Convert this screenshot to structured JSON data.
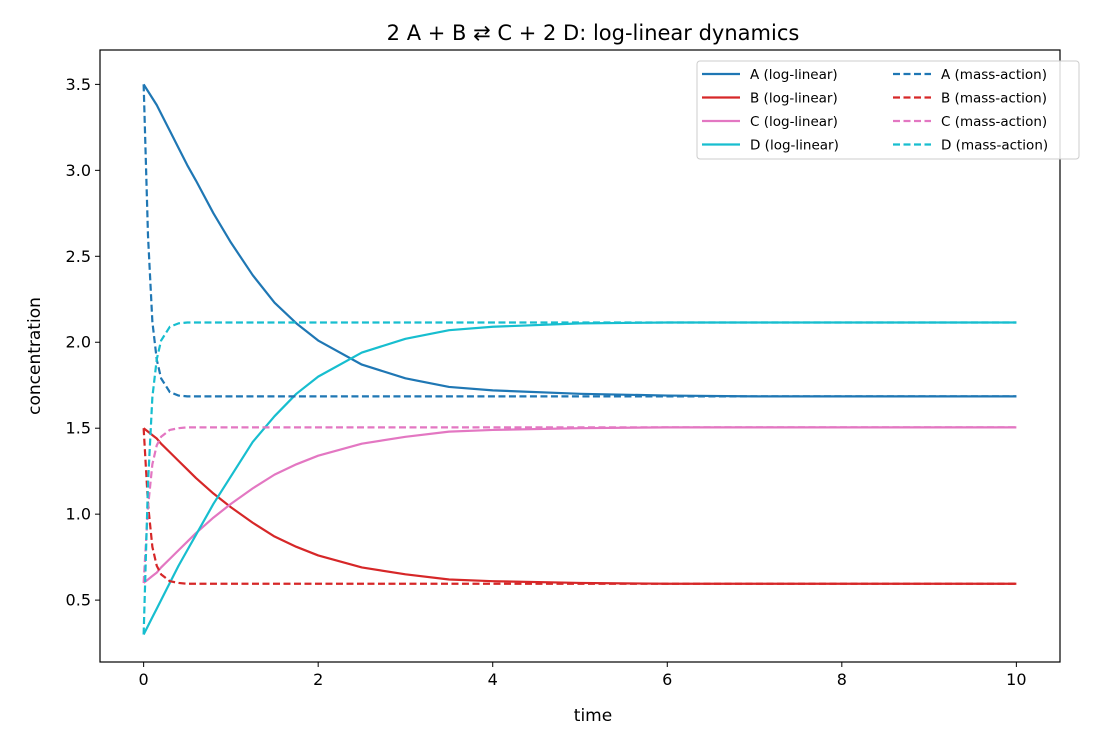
{
  "chart_data": {
    "type": "line",
    "title": "2 A + B ⇄ C + 2 D: log-linear dynamics",
    "xlabel": "time",
    "ylabel": "concentration",
    "xlim": [
      -0.5,
      10.5
    ],
    "ylim": [
      0.14,
      3.7
    ],
    "xticks": [
      0,
      2,
      4,
      6,
      8,
      10
    ],
    "yticks": [
      0.5,
      1.0,
      1.5,
      2.0,
      2.5,
      3.0,
      3.5
    ],
    "xtick_labels": [
      "0",
      "2",
      "4",
      "6",
      "8",
      "10"
    ],
    "ytick_labels": [
      "0.5",
      "1.0",
      "1.5",
      "2.0",
      "2.5",
      "3.0",
      "3.5"
    ],
    "grid": false,
    "legend": {
      "placement": "top-right",
      "columns": 2
    },
    "x": [
      0,
      0.05,
      0.1,
      0.15,
      0.2,
      0.3,
      0.4,
      0.5,
      0.6,
      0.8,
      1.0,
      1.25,
      1.5,
      1.75,
      2.0,
      2.5,
      3.0,
      3.5,
      4.0,
      5.0,
      6.0,
      7.0,
      8.0,
      9.0,
      10.0
    ],
    "series": [
      {
        "name": "A (log-linear)",
        "color": "#1f77b4",
        "dash": "solid",
        "values": [
          3.5,
          3.46,
          3.42,
          3.38,
          3.33,
          3.23,
          3.13,
          3.03,
          2.94,
          2.75,
          2.58,
          2.39,
          2.23,
          2.11,
          2.01,
          1.87,
          1.79,
          1.74,
          1.72,
          1.7,
          1.69,
          1.685,
          1.685,
          1.685,
          1.685
        ]
      },
      {
        "name": "B (log-linear)",
        "color": "#d62728",
        "dash": "solid",
        "values": [
          1.5,
          1.48,
          1.46,
          1.44,
          1.41,
          1.36,
          1.31,
          1.26,
          1.21,
          1.12,
          1.04,
          0.95,
          0.87,
          0.81,
          0.76,
          0.69,
          0.65,
          0.62,
          0.61,
          0.6,
          0.595,
          0.595,
          0.595,
          0.595,
          0.595
        ]
      },
      {
        "name": "C (log-linear)",
        "color": "#e377c2",
        "dash": "solid",
        "values": [
          0.6,
          0.62,
          0.64,
          0.66,
          0.69,
          0.74,
          0.79,
          0.84,
          0.89,
          0.98,
          1.06,
          1.15,
          1.23,
          1.29,
          1.34,
          1.41,
          1.45,
          1.48,
          1.49,
          1.5,
          1.505,
          1.505,
          1.505,
          1.505,
          1.505
        ]
      },
      {
        "name": "D (log-linear)",
        "color": "#17becf",
        "dash": "solid",
        "values": [
          0.3,
          0.35,
          0.4,
          0.45,
          0.5,
          0.6,
          0.7,
          0.79,
          0.88,
          1.06,
          1.22,
          1.42,
          1.57,
          1.7,
          1.8,
          1.94,
          2.02,
          2.07,
          2.09,
          2.11,
          2.115,
          2.115,
          2.115,
          2.115,
          2.115
        ]
      },
      {
        "name": "A (mass-action)",
        "color": "#1f77b4",
        "dash": "dashed",
        "values": [
          3.5,
          2.62,
          2.12,
          1.9,
          1.79,
          1.71,
          1.69,
          1.685,
          1.685,
          1.685,
          1.685,
          1.685,
          1.685,
          1.685,
          1.685,
          1.685,
          1.685,
          1.685,
          1.685,
          1.685,
          1.685,
          1.685,
          1.685,
          1.685,
          1.685
        ]
      },
      {
        "name": "B (mass-action)",
        "color": "#d62728",
        "dash": "dashed",
        "values": [
          1.5,
          1.06,
          0.81,
          0.7,
          0.65,
          0.61,
          0.6,
          0.595,
          0.595,
          0.595,
          0.595,
          0.595,
          0.595,
          0.595,
          0.595,
          0.595,
          0.595,
          0.595,
          0.595,
          0.595,
          0.595,
          0.595,
          0.595,
          0.595,
          0.595
        ]
      },
      {
        "name": "C (mass-action)",
        "color": "#e377c2",
        "dash": "dashed",
        "values": [
          0.6,
          1.04,
          1.29,
          1.4,
          1.45,
          1.49,
          1.5,
          1.505,
          1.505,
          1.505,
          1.505,
          1.505,
          1.505,
          1.505,
          1.505,
          1.505,
          1.505,
          1.505,
          1.505,
          1.505,
          1.505,
          1.505,
          1.505,
          1.505,
          1.505
        ]
      },
      {
        "name": "D (mass-action)",
        "color": "#17becf",
        "dash": "dashed",
        "values": [
          0.3,
          1.18,
          1.68,
          1.9,
          2.01,
          2.09,
          2.11,
          2.115,
          2.115,
          2.115,
          2.115,
          2.115,
          2.115,
          2.115,
          2.115,
          2.115,
          2.115,
          2.115,
          2.115,
          2.115,
          2.115,
          2.115,
          2.115,
          2.115,
          2.115
        ]
      }
    ]
  }
}
